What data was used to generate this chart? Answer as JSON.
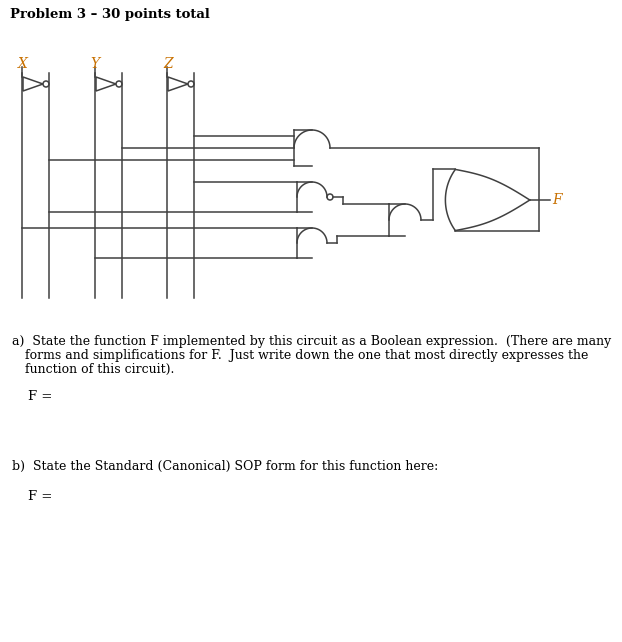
{
  "title": "Problem 3 – 30 points total",
  "title_color": "#000000",
  "title_fontsize": 9.5,
  "title_bold": true,
  "var_labels": [
    "X",
    "Y",
    "Z"
  ],
  "var_label_color": "#c87000",
  "var_label_fontsize": 10,
  "text_color": "#000000",
  "gate_color": "#404040",
  "wire_color": "#404040",
  "bg_color": "#ffffff",
  "part_a_line1": "a)  State the function F implemented by this circuit as a Boolean expression.  (There are many",
  "part_a_line2": "     forms and simplifications for F.  Just write down the one that most directly expresses the",
  "part_a_line3": "     function of this circuit).",
  "part_a_answer": "F =",
  "part_b_text": "b)  State the Standard (Canonical) SOP form for this function here:",
  "part_b_answer": "F =",
  "text_fontsize": 9.0,
  "answer_fontsize": 9.5,
  "F_label_color": "#c87000"
}
